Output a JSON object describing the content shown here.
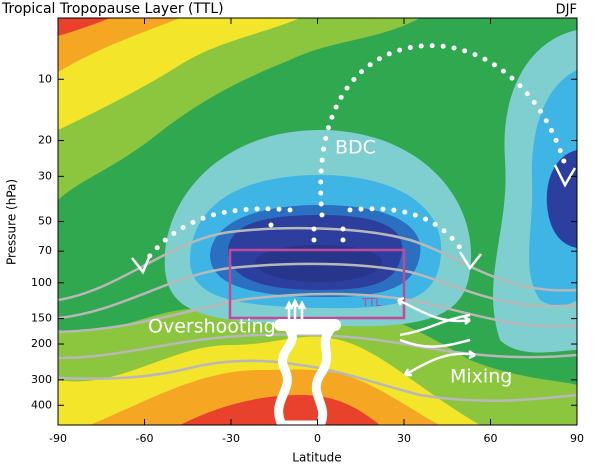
{
  "chart_data": {
    "type": "contour",
    "title": "Tropical Tropopause Layer (TTL)",
    "season": "DJF",
    "xlabel": "Latitude",
    "ylabel": "Pressure (hPa)",
    "annotations": [
      "BDC",
      "TTL",
      "Overshooting",
      "Mixing"
    ],
    "xlim": [
      -90,
      90
    ],
    "xticks": [
      -90,
      -60,
      -30,
      0,
      30,
      60,
      90
    ],
    "ylim": [
      500,
      5
    ],
    "log_y": true,
    "yticks": [
      10,
      20,
      30,
      50,
      70,
      100,
      150,
      200,
      300,
      400
    ]
  }
}
